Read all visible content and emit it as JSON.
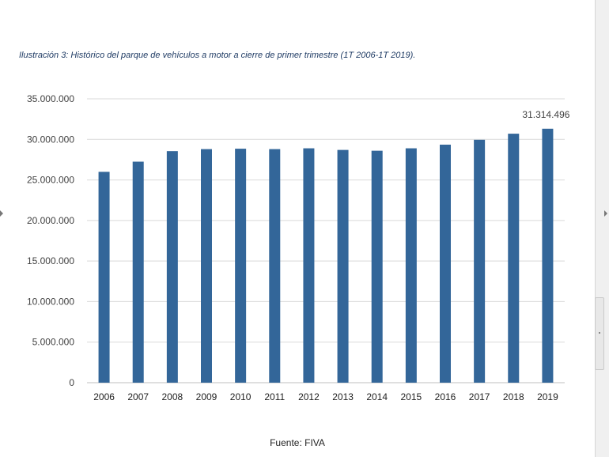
{
  "caption": "Ilustración 3: Histórico del parque de vehículos a motor a cierre de primer trimestre (1T 2006-1T 2019).",
  "source": "Fuente: FIVA",
  "colors": {
    "bar": "#336699",
    "grid": "#d9d9d9",
    "axis_text": "#404040"
  },
  "chart_data": {
    "type": "bar",
    "title": "",
    "xlabel": "",
    "ylabel": "",
    "categories": [
      "2006",
      "2007",
      "2008",
      "2009",
      "2010",
      "2011",
      "2012",
      "2013",
      "2014",
      "2015",
      "2016",
      "2017",
      "2018",
      "2019"
    ],
    "values": [
      26000000,
      27250000,
      28550000,
      28800000,
      28850000,
      28800000,
      28900000,
      28700000,
      28600000,
      28900000,
      29350000,
      29950000,
      30700000,
      31314496
    ],
    "ylim": [
      0,
      35000000
    ],
    "yticks": [
      0,
      5000000,
      10000000,
      15000000,
      20000000,
      25000000,
      30000000,
      35000000
    ],
    "ytick_labels": [
      "0",
      "5.000.000",
      "10.000.000",
      "15.000.000",
      "20.000.000",
      "25.000.000",
      "30.000.000",
      "35.000.000"
    ],
    "data_labels": [
      {
        "category": "2019",
        "text": "31.314.496"
      }
    ],
    "grid": true,
    "legend": "none"
  }
}
